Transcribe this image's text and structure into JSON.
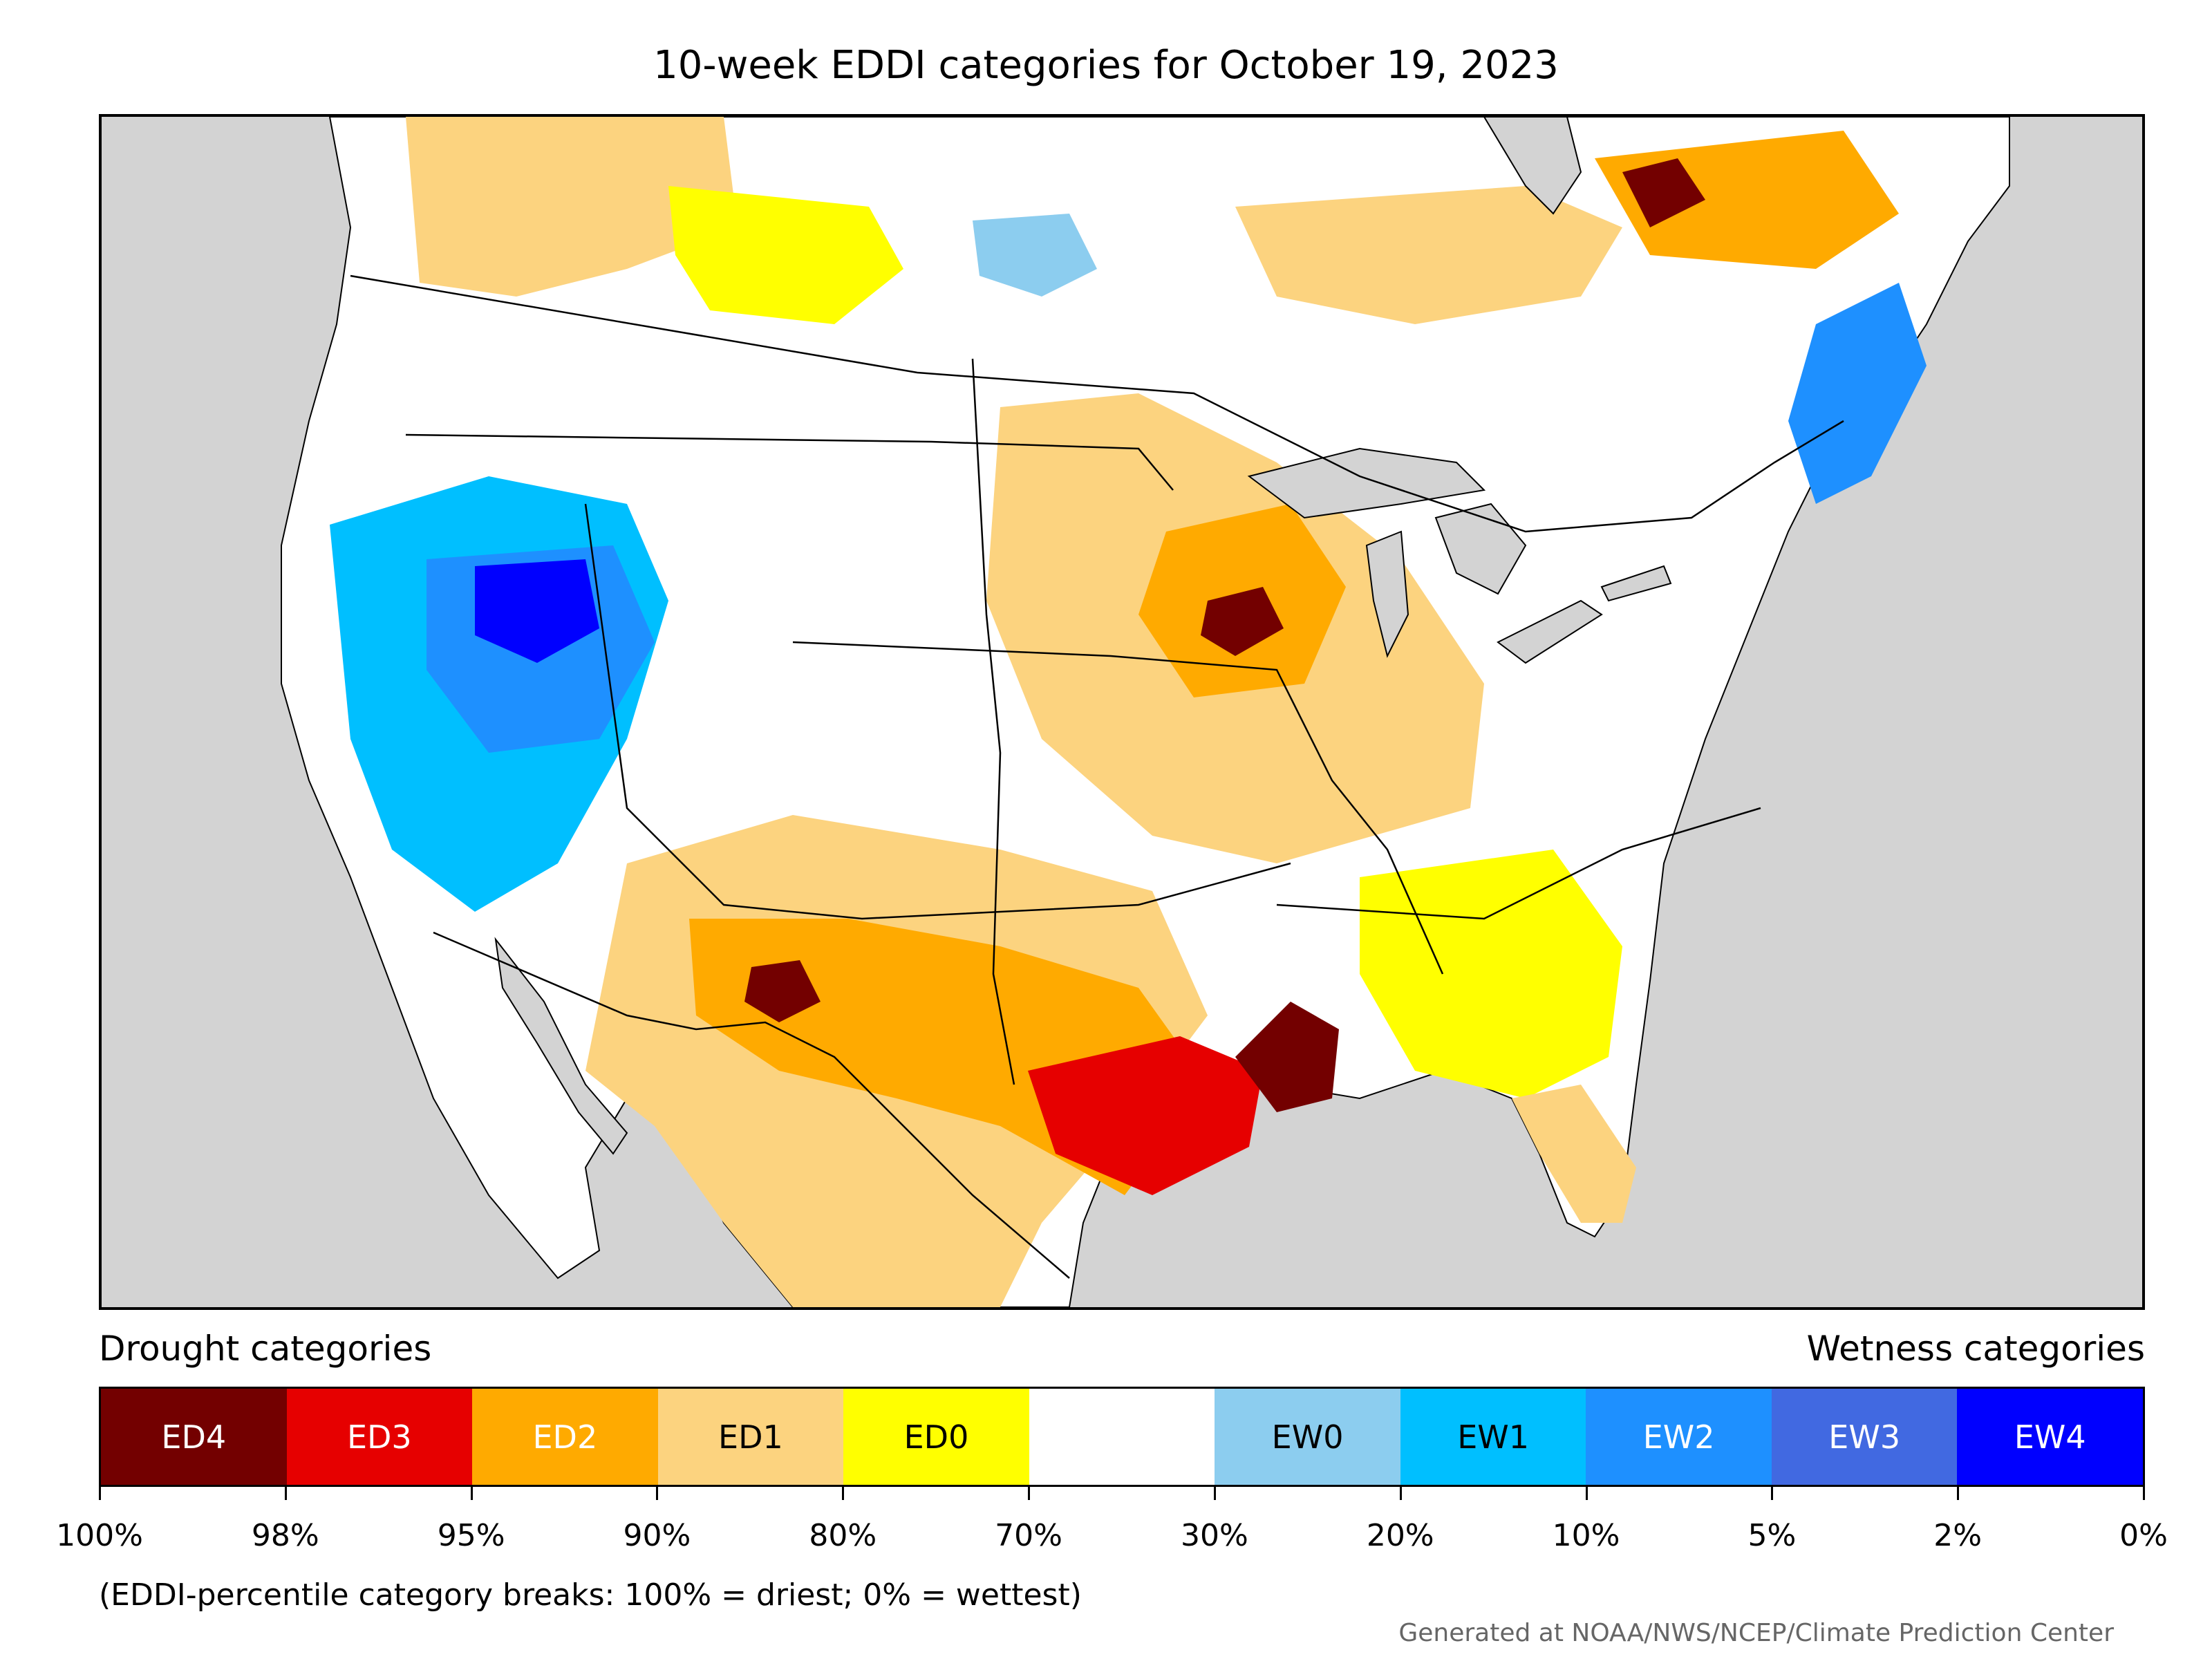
{
  "title": "10-week EDDI categories for October 19, 2023",
  "legend": {
    "drought_label": "Drought categories",
    "wetness_label": "Wetness categories",
    "categories": [
      {
        "code": "ED4",
        "color": "#730000",
        "text_color": "#ffffff"
      },
      {
        "code": "ED3",
        "color": "#e60000",
        "text_color": "#ffffff"
      },
      {
        "code": "ED2",
        "color": "#ffaa00",
        "text_color": "#ffffff"
      },
      {
        "code": "ED1",
        "color": "#fcd37f",
        "text_color": "#000000"
      },
      {
        "code": "ED0",
        "color": "#ffff00",
        "text_color": "#000000"
      },
      {
        "code": "",
        "color": "#ffffff",
        "text_color": "#000000"
      },
      {
        "code": "EW0",
        "color": "#8ccdef",
        "text_color": "#000000"
      },
      {
        "code": "EW1",
        "color": "#00bfff",
        "text_color": "#000000"
      },
      {
        "code": "EW2",
        "color": "#1e90ff",
        "text_color": "#ffffff"
      },
      {
        "code": "EW3",
        "color": "#4169e1",
        "text_color": "#ffffff"
      },
      {
        "code": "EW4",
        "color": "#0000ff",
        "text_color": "#ffffff"
      }
    ],
    "breaks": [
      "100%",
      "98%",
      "95%",
      "90%",
      "80%",
      "70%",
      "30%",
      "20%",
      "10%",
      "5%",
      "2%",
      "0%"
    ]
  },
  "note": "(EDDI-percentile category breaks: 100% = driest; 0% = wettest)",
  "credit": "Generated at NOAA/NWS/NCEP/Climate Prediction Center",
  "map": {
    "ocean_color": "#d3d3d3",
    "land_color": "#ffffff",
    "border_color": "#000000"
  }
}
